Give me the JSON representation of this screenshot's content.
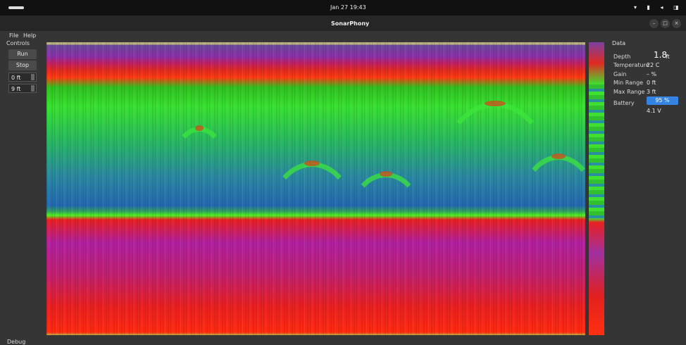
{
  "system_bar": {
    "clock": "Jan 27 19:43"
  },
  "window": {
    "title": "SonarPhony"
  },
  "menu": [
    "File",
    "Help"
  ],
  "controls": {
    "title": "Controls",
    "run": "Run",
    "stop": "Stop",
    "min_input": "0 ft",
    "max_input": "9 ft"
  },
  "data_panel": {
    "title": "Data",
    "depth_label": "Depth",
    "depth_value": "1.8",
    "depth_unit": "ft",
    "rows": [
      [
        "Temperature",
        "22 C"
      ],
      [
        "Gain",
        "– %"
      ],
      [
        "Min Range",
        "0 ft"
      ],
      [
        "Max Range",
        "3 ft"
      ]
    ],
    "battery_label": "Battery",
    "battery_percent": "95 %",
    "battery_voltage": "4.1 V"
  },
  "debug": {
    "title": "Debug"
  }
}
